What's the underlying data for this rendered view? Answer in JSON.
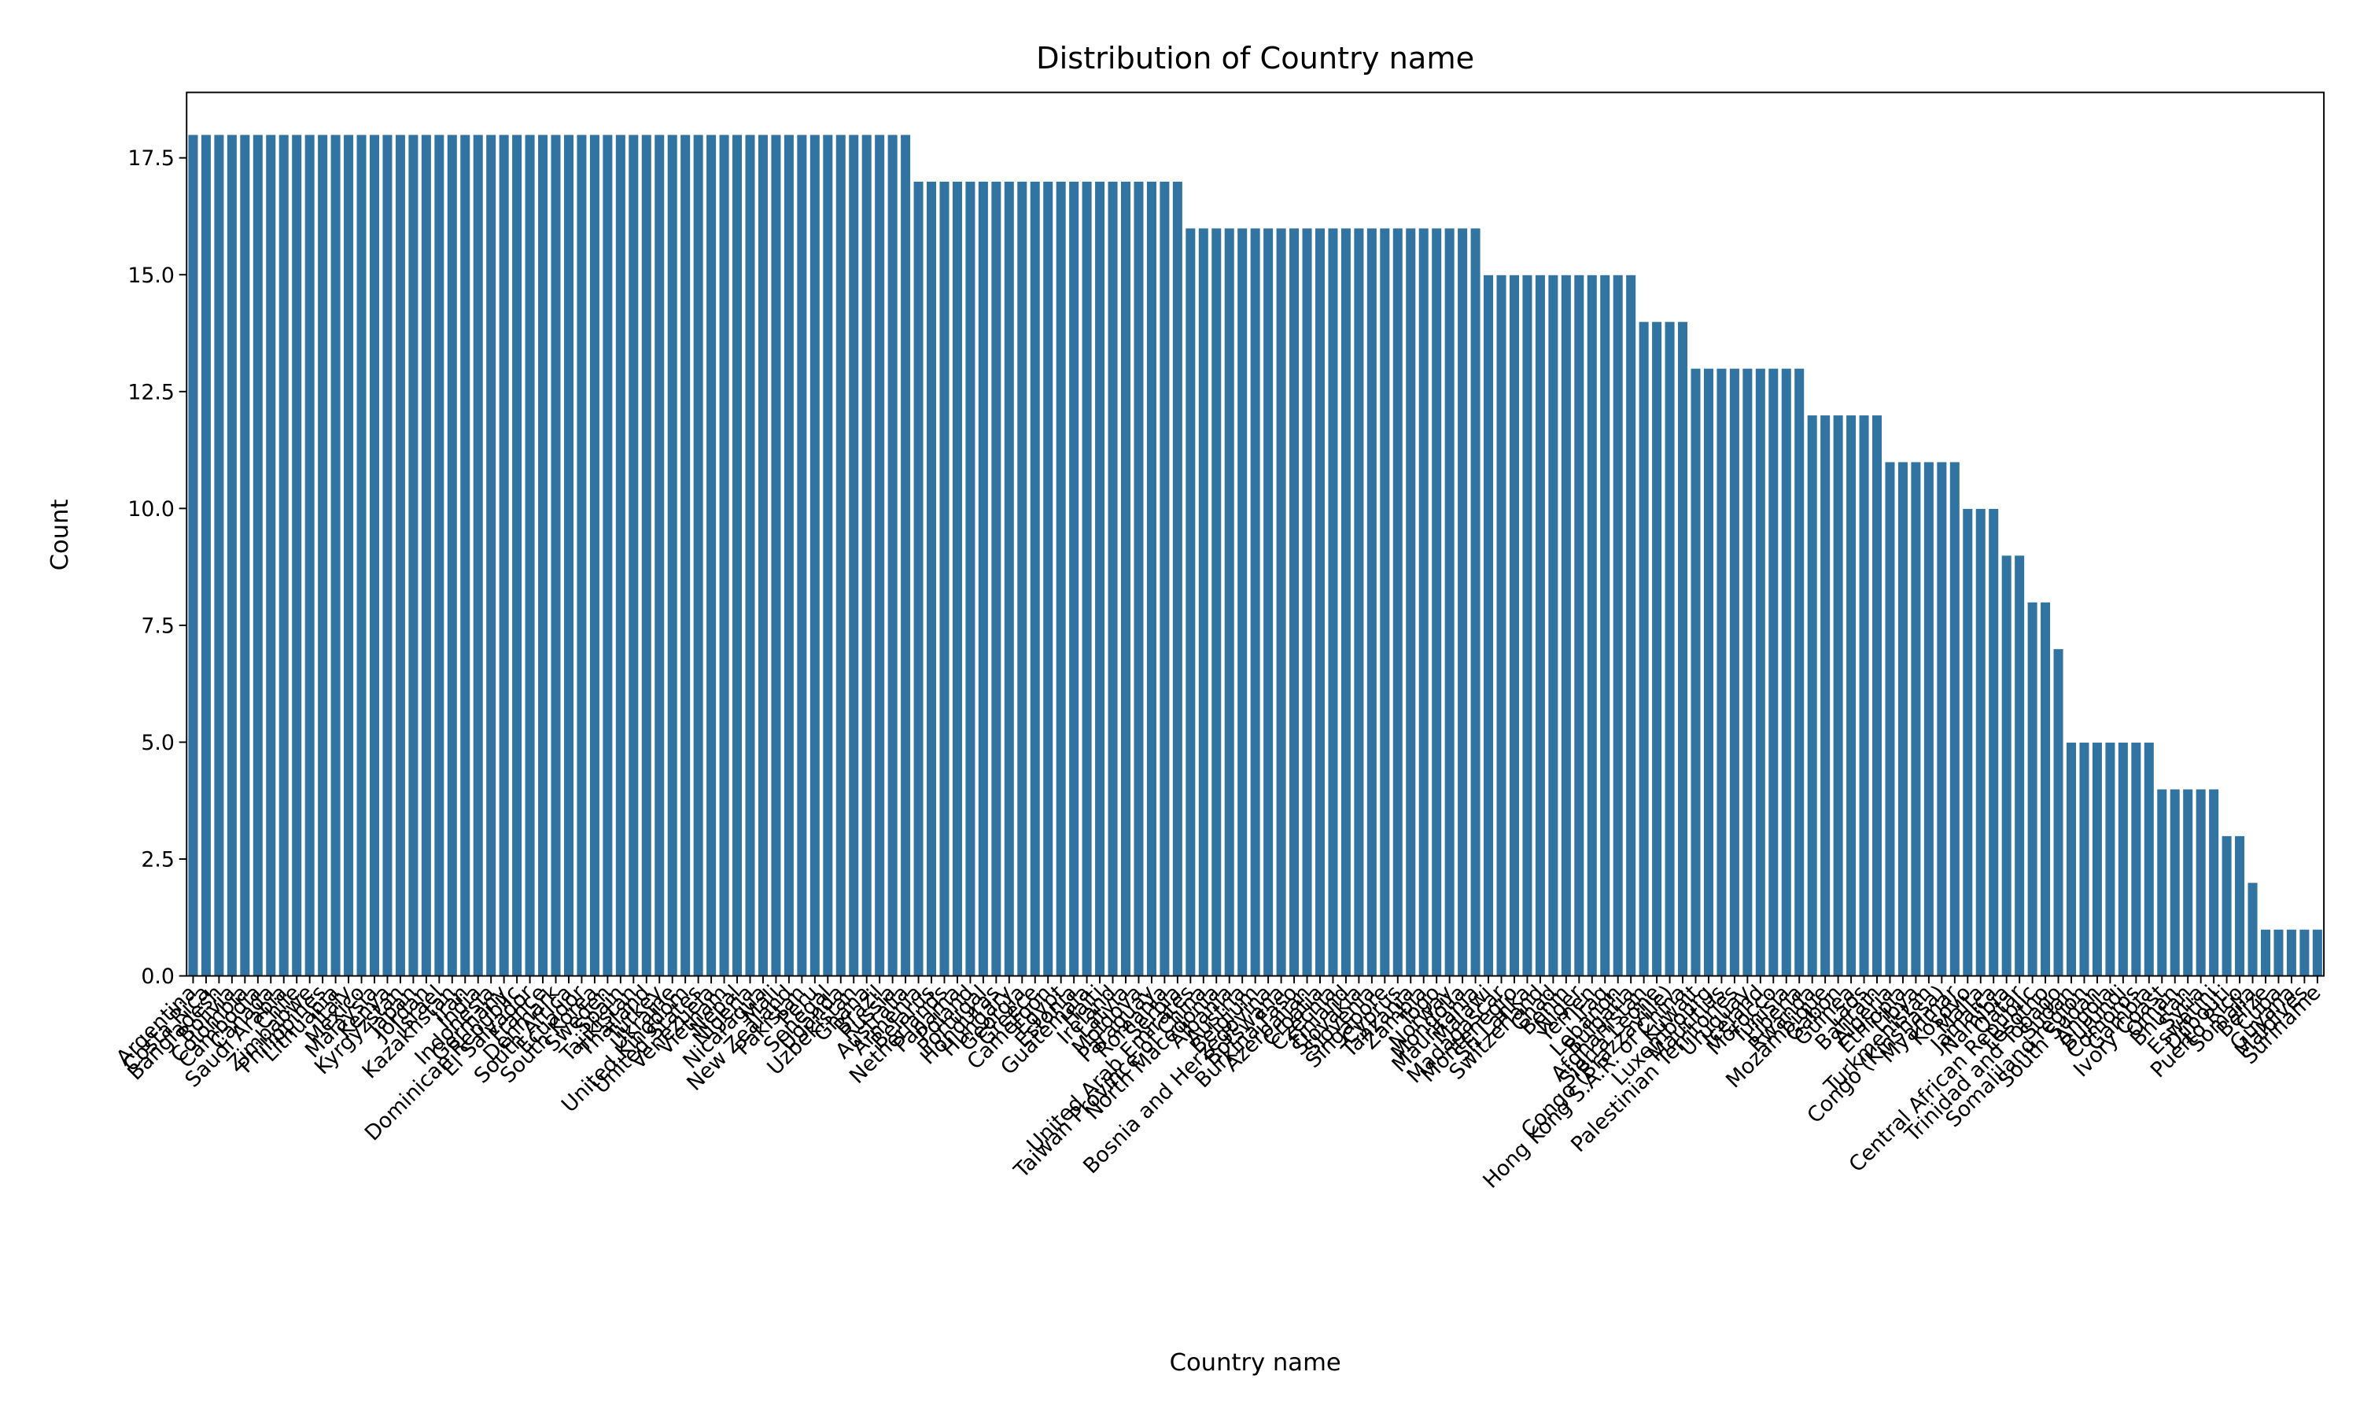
{
  "chart_data": {
    "type": "bar",
    "title": "Distribution of Country name",
    "x_label": "Country name",
    "y_label": "Count",
    "color": "#3274a1",
    "ylim": [
      0,
      18.9
    ],
    "yticks": [
      {
        "value": 0,
        "label": "0.0"
      },
      2.5,
      {
        "value": 5,
        "label": "5.0"
      },
      7.5,
      {
        "value": 10,
        "label": "10.0"
      },
      12.5,
      {
        "value": 15,
        "label": "15.0"
      },
      17.5
    ],
    "categories": [
      "Argentina",
      "Costa Rica",
      "Bangladesh",
      "Bolivia",
      "Colombia",
      "Cambodia",
      "Canada",
      "Saudi Arabia",
      "Chile",
      "Zimbabwe",
      "Philippines",
      "Lithuania",
      "Italy",
      "Mexico",
      "Malaysia",
      "Kenya",
      "Kyrgyzstan",
      "Japan",
      "Jordan",
      "Israel",
      "Kazakhstan",
      "Iran",
      "India",
      "Indonesia",
      "Germany",
      "Dominican Republic",
      "El Salvador",
      "France",
      "Denmark",
      "South Africa",
      "Ecuador",
      "South Korea",
      "Sweden",
      "Spain",
      "Tajikistan",
      "Thailand",
      "Turkey",
      "Ukraine",
      "United Kingdom",
      "United States",
      "Venezuela",
      "Vietnam",
      "Nepal",
      "Nigeria",
      "Nicaragua",
      "Mali",
      "New Zealand",
      "Pakistan",
      "Peru",
      "Senegal",
      "Uganda",
      "Uzbekistan",
      "Ghana",
      "Brazil",
      "Russia",
      "Australia",
      "Armenia",
      "Belarus",
      "Netherlands",
      "Panama",
      "Poland",
      "Portugal",
      "Honduras",
      "Hungary",
      "Georgia",
      "Greece",
      "Cameroon",
      "Egypt",
      "Estonia",
      "Guatemala",
      "Haiti",
      "Ireland",
      "Latvia",
      "Moldova",
      "Paraguay",
      "Romania",
      "Serbia",
      "United Arab Emirates",
      "Taiwan Province of China",
      "North Macedonia",
      "Albania",
      "Austria",
      "Belgium",
      "Bosnia and Herzegovina",
      "Botswana",
      "Burkina Faso",
      "Azerbaijan",
      "Croatia",
      "Czechia",
      "Finland",
      "Slovakia",
      "Slovenia",
      "Singapore",
      "Cyprus",
      "Tanzania",
      "Zambia",
      "Togo",
      "Norway",
      "Mongolia",
      "Mauritania",
      "Malawi",
      "Madagascar",
      "Montenegro",
      "Sri Lanka",
      "Switzerland",
      "Chad",
      "Benin",
      "Niger",
      "Yemen",
      "Iraq",
      "Lebanon",
      "Bulgaria",
      "Afghanistan",
      "Sierra Leone",
      "Congo (Brazzaville)",
      "Hong Kong S.A.R. of China",
      "Kuwait",
      "Luxembourg",
      "Mauritius",
      "Palestinian Territories",
      "Uruguay",
      "Iceland",
      "Morocco",
      "Tunisia",
      "Liberia",
      "Rwanda",
      "Mozambique",
      "Gabon",
      "Guinea",
      "Laos",
      "Bahrain",
      "Algeria",
      "Ethiopia",
      "Libya",
      "Turkmenistan",
      "Congo (Kinshasa)",
      "Myanmar",
      "Kosovo",
      "Malta",
      "Jamaica",
      "Namibia",
      "Qatar",
      "Central African Republic",
      "Lesotho",
      "Trinidad and Tobago",
      "Sudan",
      "Somaliland region",
      "South Sudan",
      "Angola",
      "Burundi",
      "Comoros",
      "Gambia",
      "Ivory Coast",
      "Oman",
      "Bhutan",
      "Syria",
      "Eswatini",
      "Djibouti",
      "Puerto Rico",
      "Somalia",
      "Belize",
      "Cuba",
      "Guyana",
      "Maldives",
      "Suriname"
    ],
    "values": [
      18,
      18,
      18,
      18,
      18,
      18,
      18,
      18,
      18,
      18,
      18,
      18,
      18,
      18,
      18,
      18,
      18,
      18,
      18,
      18,
      18,
      18,
      18,
      18,
      18,
      18,
      18,
      18,
      18,
      18,
      18,
      18,
      18,
      18,
      18,
      18,
      18,
      18,
      18,
      18,
      18,
      18,
      18,
      18,
      18,
      18,
      18,
      18,
      18,
      18,
      18,
      18,
      18,
      18,
      18,
      18,
      17,
      17,
      17,
      17,
      17,
      17,
      17,
      17,
      17,
      17,
      17,
      17,
      17,
      17,
      17,
      17,
      17,
      17,
      17,
      17,
      17,
      16,
      16,
      16,
      16,
      16,
      16,
      16,
      16,
      16,
      16,
      16,
      16,
      16,
      16,
      16,
      16,
      16,
      16,
      16,
      16,
      16,
      16,
      16,
      15,
      15,
      15,
      15,
      15,
      15,
      15,
      15,
      15,
      15,
      15,
      15,
      14,
      14,
      14,
      14,
      13,
      13,
      13,
      13,
      13,
      13,
      13,
      13,
      13,
      12,
      12,
      12,
      12,
      12,
      12,
      11,
      11,
      11,
      11,
      11,
      11,
      10,
      10,
      10,
      9,
      9,
      8,
      8,
      7,
      5,
      5,
      5,
      5,
      5,
      5,
      5,
      4,
      4,
      4,
      4,
      4,
      3,
      3,
      2,
      1,
      1,
      1,
      1,
      1
    ]
  }
}
